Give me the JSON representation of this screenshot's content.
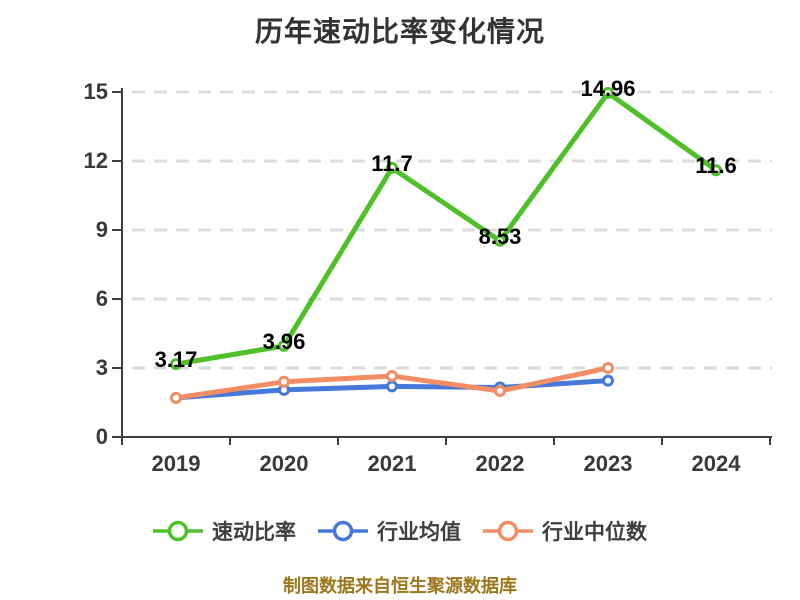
{
  "title": "历年速动比率变化情况",
  "footer": "制图数据来自恒生聚源数据库",
  "colors": {
    "axis": "#3f3f3f",
    "grid": "#dcdcdc",
    "title_text": "#333333",
    "tick_text": "#3a3a3a",
    "value_label_text": "#000000",
    "footer_text": "#9d771c",
    "marker_fill": "#ffffff"
  },
  "chart_data": {
    "type": "line",
    "title": "历年速动比率变化情况",
    "xlabel": "",
    "ylabel": "",
    "categories": [
      "2019",
      "2020",
      "2021",
      "2022",
      "2023",
      "2024"
    ],
    "series": [
      {
        "name": "速动比率",
        "color": "#4fc029",
        "values": [
          3.17,
          3.96,
          11.7,
          8.53,
          14.96,
          11.6
        ],
        "labels": [
          "3.17",
          "3.96",
          "11.7",
          "8.53",
          "14.96",
          "11.6"
        ]
      },
      {
        "name": "行业均值",
        "color": "#4679d9",
        "values": [
          1.7,
          2.05,
          2.2,
          2.15,
          2.45
        ]
      },
      {
        "name": "行业中位数",
        "color": "#f28d65",
        "values": [
          1.7,
          2.4,
          2.65,
          2.0,
          3.0
        ]
      }
    ],
    "y_ticks": [
      0,
      3,
      6,
      9,
      12,
      15
    ],
    "ylim": [
      0,
      15
    ],
    "grid": "horizontal dashed",
    "legend_position": "bottom",
    "marker_style": "white-filled circle with colored ring"
  }
}
